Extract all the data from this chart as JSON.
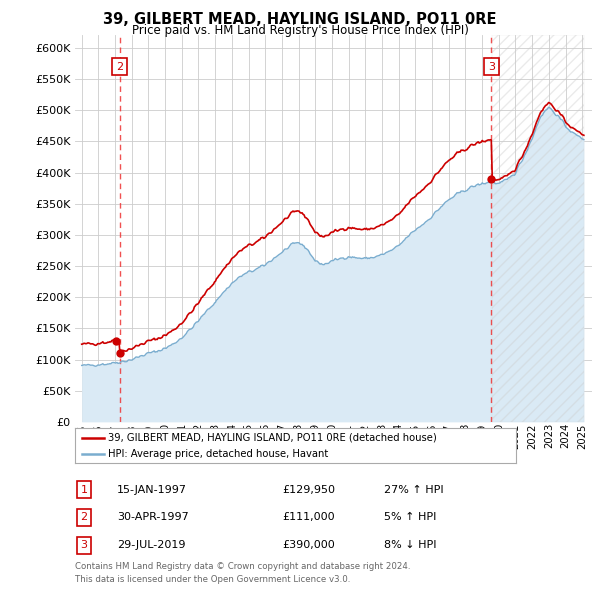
{
  "title": "39, GILBERT MEAD, HAYLING ISLAND, PO11 0RE",
  "subtitle": "Price paid vs. HM Land Registry's House Price Index (HPI)",
  "legend_label_red": "39, GILBERT MEAD, HAYLING ISLAND, PO11 0RE (detached house)",
  "legend_label_blue": "HPI: Average price, detached house, Havant",
  "transactions": [
    {
      "num": 1,
      "date": "15-JAN-1997",
      "price": 129950,
      "price_str": "£129,950",
      "pct": "27%",
      "dir": "↑"
    },
    {
      "num": 2,
      "date": "30-APR-1997",
      "price": 111000,
      "price_str": "£111,000",
      "pct": "5%",
      "dir": "↑"
    },
    {
      "num": 3,
      "date": "29-JUL-2019",
      "price": 390000,
      "price_str": "£390,000",
      "pct": "8%",
      "dir": "↓"
    }
  ],
  "footer1": "Contains HM Land Registry data © Crown copyright and database right 2024.",
  "footer2": "This data is licensed under the Open Government Licence v3.0.",
  "ylim": [
    0,
    620000
  ],
  "yticks": [
    0,
    50000,
    100000,
    150000,
    200000,
    250000,
    300000,
    350000,
    400000,
    450000,
    500000,
    550000,
    600000
  ],
  "background_color": "#ffffff",
  "grid_color": "#cccccc",
  "red_line_color": "#cc0000",
  "blue_line_color": "#7aadcf",
  "blue_fill_color": "#daeaf5",
  "vline_color": "#ee3333",
  "annotation_box_color": "#cc0000"
}
